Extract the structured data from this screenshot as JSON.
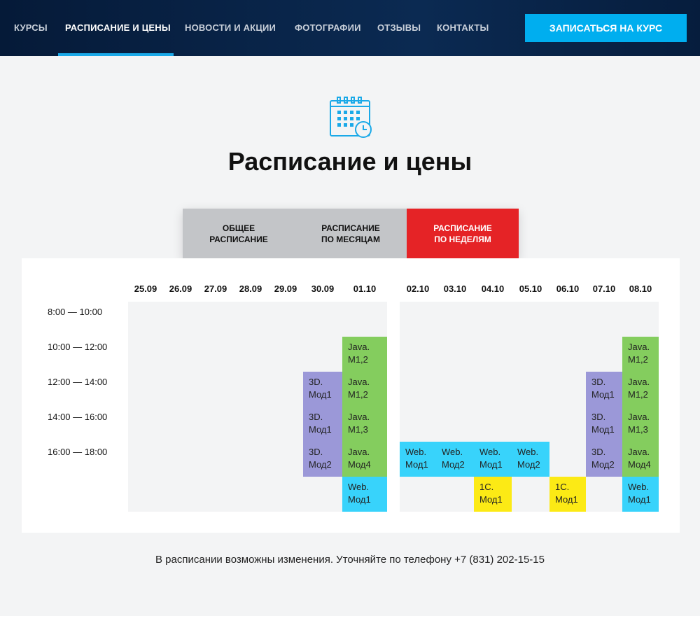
{
  "nav": {
    "items": [
      "КУРСЫ",
      "РАСПИСАНИЕ И ЦЕНЫ",
      "НОВОСТИ И АКЦИИ",
      "ФОТОГРАФИИ",
      "ОТЗЫВЫ",
      "КОНТАКТЫ"
    ],
    "active": 1,
    "cta": "ЗАПИСАТЬСЯ НА КУРС"
  },
  "page": {
    "icon": "calendar-clock-icon",
    "title": "Расписание и цены"
  },
  "tabs": [
    {
      "label": "ОБЩЕЕ\nРАСПИСАНИЕ"
    },
    {
      "label": "РАСПИСАНИЕ\nПО МЕСЯЦАМ"
    },
    {
      "label": "РАСПИСАНИЕ\nПО НЕДЕЛЯМ",
      "active": true
    }
  ],
  "colors": {
    "java": "#84cd5e",
    "3d": "#9b98d8",
    "web": "#38d3fb",
    "1c": "#fcea15",
    "accent": "#e52326",
    "cta": "#00aeef"
  },
  "times": [
    "8:00 — 10:00",
    "10:00 — 12:00",
    "12:00 — 14:00",
    "14:00 — 16:00",
    "16:00 — 18:00",
    ""
  ],
  "weeks": [
    {
      "days": [
        {
          "date": "25.09",
          "cells": [
            null,
            null,
            null,
            null,
            null,
            null
          ]
        },
        {
          "date": "26.09",
          "cells": [
            null,
            null,
            null,
            null,
            null,
            null
          ]
        },
        {
          "date": "27.09",
          "cells": [
            null,
            null,
            null,
            null,
            null,
            null
          ]
        },
        {
          "date": "28.09",
          "cells": [
            null,
            null,
            null,
            null,
            null,
            null
          ]
        },
        {
          "date": "29.09",
          "cells": [
            null,
            null,
            null,
            null,
            null,
            null
          ]
        },
        {
          "date": "30.09",
          "cells": [
            null,
            null,
            {
              "text": "3D.\nМод1",
              "type": "3d"
            },
            {
              "text": "3D.\nМод1",
              "type": "3d"
            },
            {
              "text": "3D.\nМод2",
              "type": "3d"
            },
            null
          ]
        },
        {
          "date": "01.10",
          "cells": [
            null,
            {
              "text": "Java.\nM1,2",
              "type": "java"
            },
            {
              "text": "Java.\nM1,2",
              "type": "java"
            },
            {
              "text": "Java.\nM1,3",
              "type": "java"
            },
            {
              "text": "Java.\nМод4",
              "type": "java"
            },
            {
              "text": "Web.\nМод1",
              "type": "web"
            }
          ]
        }
      ]
    },
    {
      "days": [
        {
          "date": "02.10",
          "cells": [
            null,
            null,
            null,
            null,
            {
              "text": "Web.\nМод1",
              "type": "web"
            },
            null
          ]
        },
        {
          "date": "03.10",
          "cells": [
            null,
            null,
            null,
            null,
            {
              "text": "Web.\nМод2",
              "type": "web"
            },
            null
          ]
        },
        {
          "date": "04.10",
          "cells": [
            null,
            null,
            null,
            null,
            {
              "text": "Web.\nМод1",
              "type": "web"
            },
            {
              "text": "1С.\nМод1",
              "type": "1c"
            }
          ]
        },
        {
          "date": "05.10",
          "cells": [
            null,
            null,
            null,
            null,
            {
              "text": "Web.\nМод2",
              "type": "web"
            },
            null
          ]
        },
        {
          "date": "06.10",
          "cells": [
            null,
            null,
            null,
            null,
            null,
            {
              "text": "1С.\nМод1",
              "type": "1c"
            }
          ]
        },
        {
          "date": "07.10",
          "cells": [
            null,
            null,
            {
              "text": "3D.\nМод1",
              "type": "3d"
            },
            {
              "text": "3D.\nМод1",
              "type": "3d"
            },
            {
              "text": "3D.\nМод2",
              "type": "3d"
            },
            null
          ]
        },
        {
          "date": "08.10",
          "cells": [
            null,
            {
              "text": "Java.\nM1,2",
              "type": "java"
            },
            {
              "text": "Java.\nM1,2",
              "type": "java"
            },
            {
              "text": "Java.\nM1,3",
              "type": "java"
            },
            {
              "text": "Java.\nМод4",
              "type": "java"
            },
            {
              "text": "Web.\nМод1",
              "type": "web"
            }
          ]
        }
      ]
    }
  ],
  "note": "В расписании возможны изменения. Уточняйте по телефону +7 (831) 202-15-15"
}
